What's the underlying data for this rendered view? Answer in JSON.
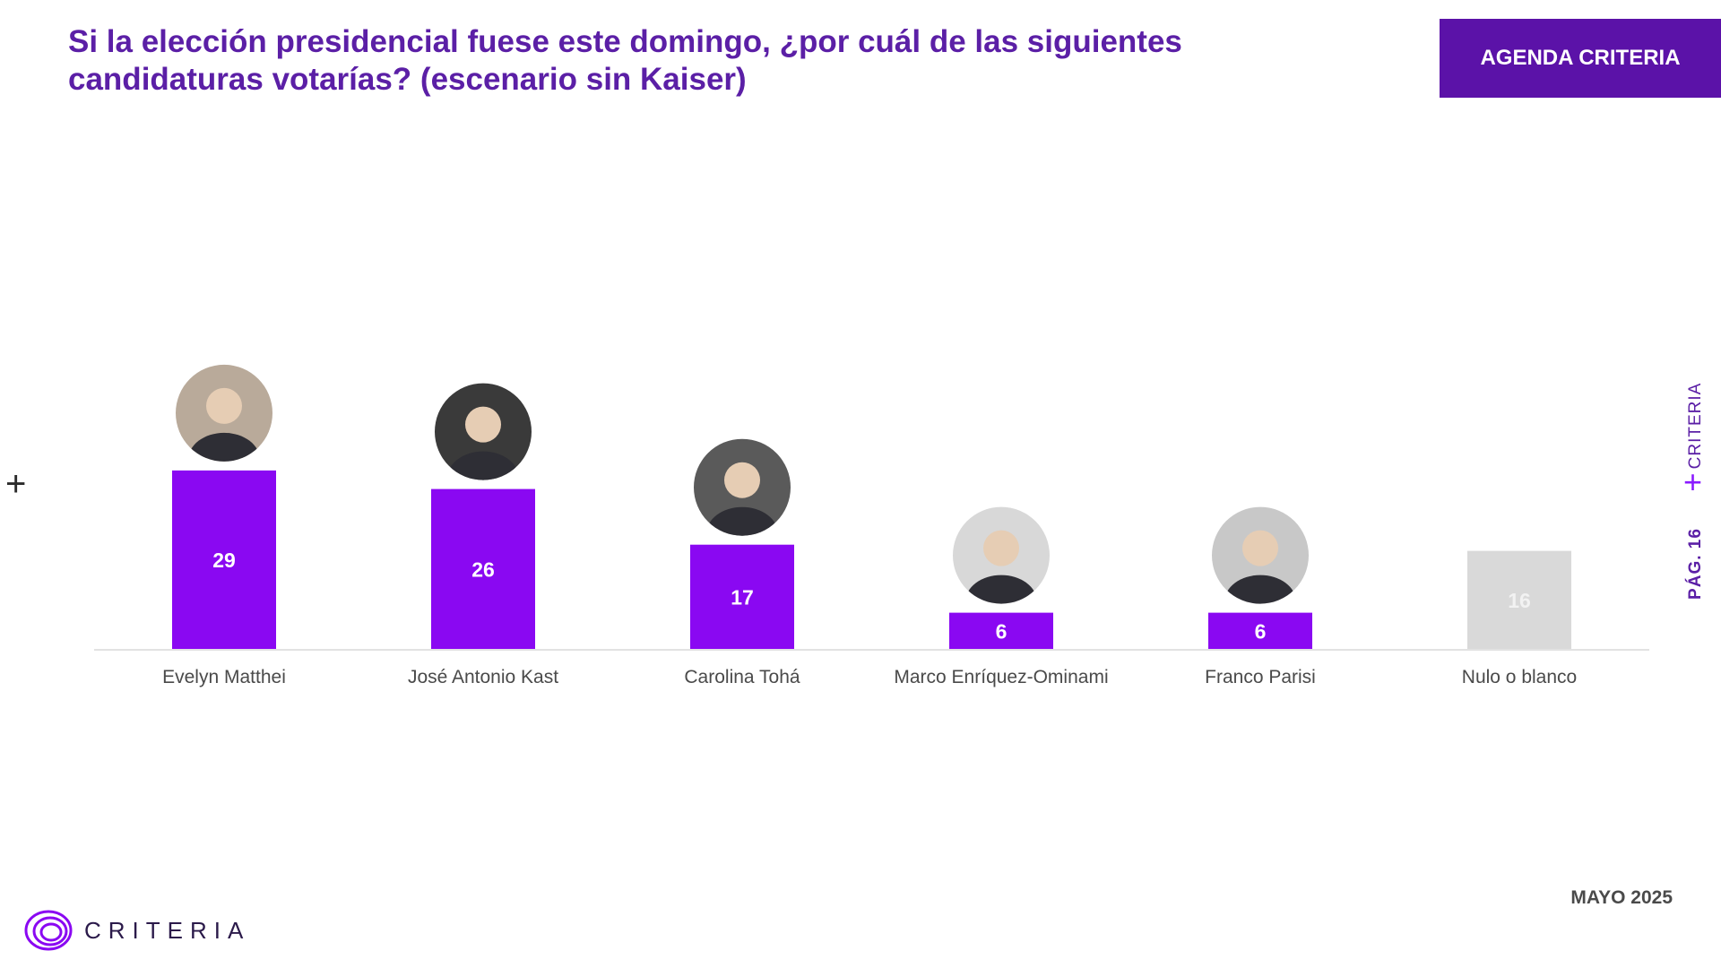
{
  "header": {
    "title": "Si la elección presidencial fuese este domingo, ¿por cuál de las siguientes candidaturas votarías? (escenario sin Kaiser)",
    "badge": "AGENDA CRITERIA"
  },
  "side": {
    "brand": "CRITERIA",
    "page": "PÁG. 16"
  },
  "footer": {
    "date": "MAYO 2025",
    "logo_text": "CRITERIA"
  },
  "colors": {
    "bar": "#8a08f2",
    "bar_blank": "#d9d9d9",
    "title": "#5b1fa6",
    "badge": "#5b12a8"
  },
  "chart_data": {
    "type": "bar",
    "categories": [
      "Evelyn Matthei",
      "José Antonio Kast",
      "Carolina Tohá",
      "Marco Enríquez-Ominami",
      "Franco Parisi",
      "Nulo o blanco"
    ],
    "values": [
      29,
      26,
      17,
      6,
      6,
      16
    ],
    "data_labels": [
      "29",
      "26",
      "17",
      "6",
      "6",
      "16"
    ],
    "highlight": [
      true,
      true,
      true,
      true,
      true,
      false
    ],
    "portrait_icons": [
      "person-photo",
      "person-photo",
      "person-photo",
      "person-photo",
      "person-photo",
      null
    ],
    "ylim": [
      0,
      30
    ],
    "grid": false,
    "legend": "none"
  }
}
